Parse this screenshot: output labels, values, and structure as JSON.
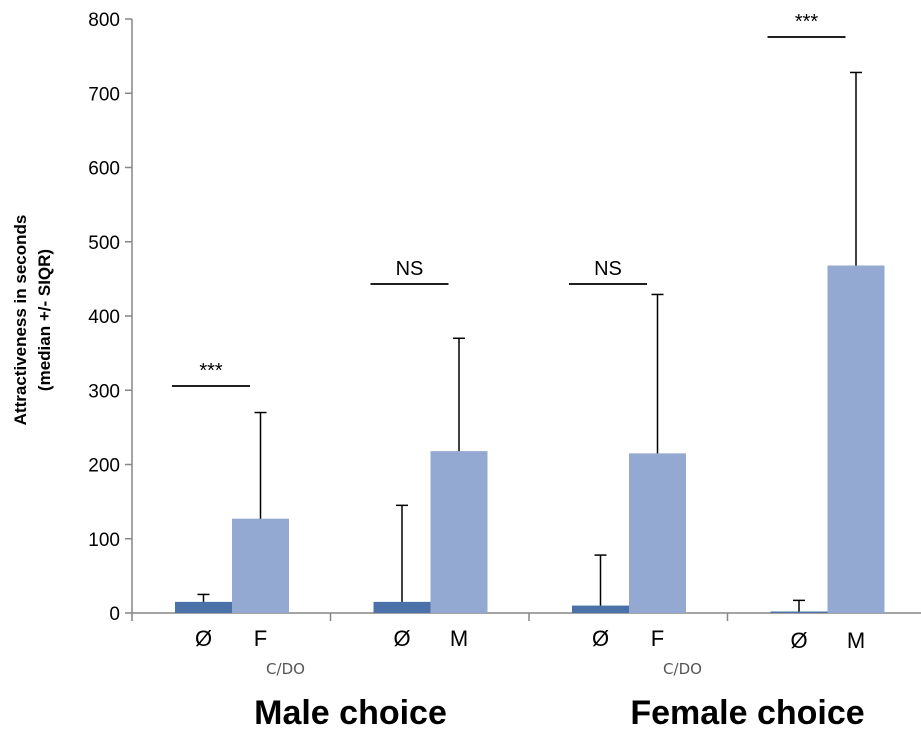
{
  "chart_data": {
    "type": "bar",
    "ylabel": [
      "Attractiveness in seconds",
      "(median +/- SIQR)"
    ],
    "ylim": [
      0,
      800
    ],
    "yticks": [
      0,
      100,
      200,
      300,
      400,
      500,
      600,
      700,
      800
    ],
    "grid": false,
    "groups": [
      {
        "name": "Male choice",
        "sublabel": "C/DO",
        "panels": [
          {
            "significance": "***",
            "bars": [
              {
                "label": "Ø",
                "value": 15,
                "error": 10,
                "color": "#4a72a8"
              },
              {
                "label": "F",
                "value": 127,
                "error": 143,
                "color": "#93a9d2"
              }
            ]
          },
          {
            "significance": "NS",
            "bars": [
              {
                "label": "Ø",
                "value": 15,
                "error": 130,
                "color": "#4a72a8"
              },
              {
                "label": "M",
                "value": 218,
                "error": 152,
                "color": "#93a9d2"
              }
            ]
          }
        ]
      },
      {
        "name": "Female choice",
        "sublabel": "C/DO",
        "panels": [
          {
            "significance": "NS",
            "bars": [
              {
                "label": "Ø",
                "value": 10,
                "error": 68,
                "color": "#4a72a8"
              },
              {
                "label": "F",
                "value": 215,
                "error": 214,
                "color": "#93a9d2"
              }
            ]
          },
          {
            "significance": "***",
            "bars": [
              {
                "label": "Ø",
                "value": 2,
                "error": 15,
                "color": "#4a72a8"
              },
              {
                "label": "M",
                "value": 468,
                "error": 260,
                "color": "#93a9d2"
              }
            ]
          }
        ]
      }
    ]
  }
}
